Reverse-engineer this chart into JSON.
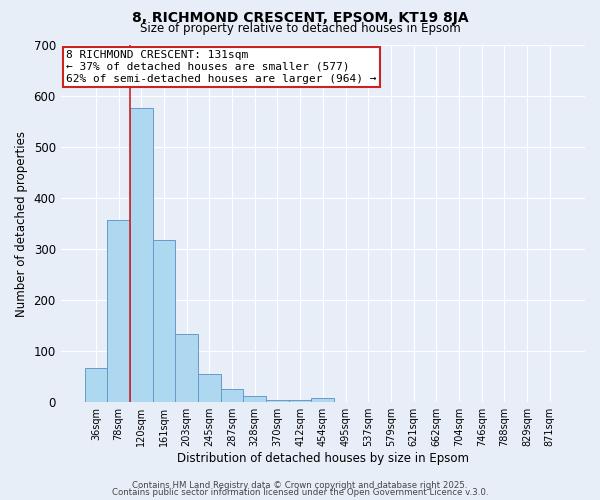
{
  "title1": "8, RICHMOND CRESCENT, EPSOM, KT19 8JA",
  "title2": "Size of property relative to detached houses in Epsom",
  "xlabel": "Distribution of detached houses by size in Epsom",
  "ylabel": "Number of detached properties",
  "categories": [
    "36sqm",
    "78sqm",
    "120sqm",
    "161sqm",
    "203sqm",
    "245sqm",
    "287sqm",
    "328sqm",
    "370sqm",
    "412sqm",
    "454sqm",
    "495sqm",
    "537sqm",
    "579sqm",
    "621sqm",
    "662sqm",
    "704sqm",
    "746sqm",
    "788sqm",
    "829sqm",
    "871sqm"
  ],
  "values": [
    68,
    357,
    577,
    317,
    133,
    55,
    26,
    13,
    5,
    5,
    9,
    0,
    0,
    0,
    0,
    0,
    0,
    0,
    0,
    0,
    0
  ],
  "bar_color": "#add8f0",
  "bar_edge_color": "#6699cc",
  "vline_x": 1.5,
  "vline_color": "#cc2222",
  "annotation_text": "8 RICHMOND CRESCENT: 131sqm\n← 37% of detached houses are smaller (577)\n62% of semi-detached houses are larger (964) →",
  "annotation_box_color": "#ffffff",
  "annotation_box_edge": "#cc2222",
  "annotation_fontsize": 8,
  "bg_color": "#e8eef8",
  "grid_color": "#ffffff",
  "ylim": [
    0,
    700
  ],
  "yticks": [
    0,
    100,
    200,
    300,
    400,
    500,
    600,
    700
  ],
  "footer_line1": "Contains HM Land Registry data © Crown copyright and database right 2025.",
  "footer_line2": "Contains public sector information licensed under the Open Government Licence v.3.0."
}
